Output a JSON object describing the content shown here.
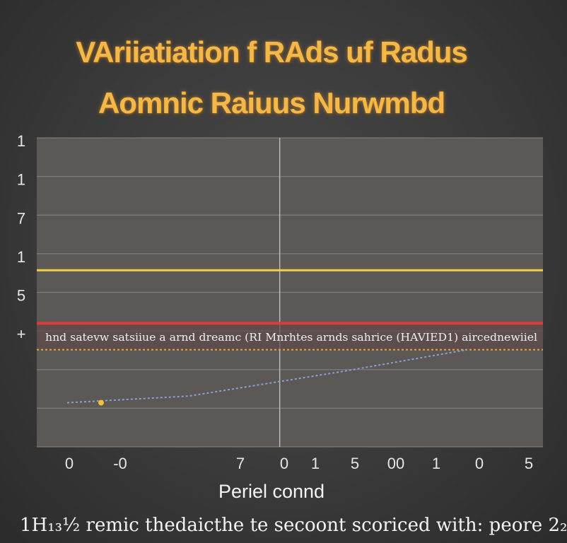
{
  "title_line1": "VAriiatiation f RAds uf Radus",
  "title_line2": "Aomnic Raiuus Nurwmbd",
  "xlabel": "Periel connd",
  "caption": "1H₁₃½ remic thedaicthe te secoont scoriced with: peore 2₂",
  "band_text": "hnd satevw satsiiue a arnd dreamc (RI Mnrhtes arnds sahrice (HAVIED1) aircednewiiel",
  "chart_data": {
    "type": "line",
    "title": "VAriiatiation f RAds uf Radus Aomnic Raiuus Nurwmbd",
    "xlabel": "Periel connd",
    "ylabel": "",
    "y_tick_labels": [
      "1",
      "1",
      "7",
      "1",
      "5",
      "+",
      "",
      ""
    ],
    "x_tick_labels": [
      "0",
      "-0",
      "7",
      "0",
      "1",
      "5",
      "00",
      "1",
      "0",
      "5"
    ],
    "series": [
      {
        "color": "#f1d04a",
        "x": [
          0,
          1
        ],
        "y": [
          4,
          4
        ]
      },
      {
        "color": "#e03a3a",
        "x": [
          0,
          1
        ],
        "y": [
          2.8,
          2.8
        ]
      },
      {
        "color": "#e8a63a",
        "x": [
          0,
          1
        ],
        "y": [
          2.2,
          2.2
        ]
      },
      {
        "color": "#8aa0d8",
        "x": [
          0.06,
          0.3,
          0.6,
          0.85
        ],
        "y": [
          1.0,
          1.15,
          1.7,
          2.2
        ]
      }
    ],
    "xlim": [
      0,
      1
    ],
    "ylim": [
      0,
      7
    ],
    "grid": true,
    "colors": {
      "plot_bg": "#5b5855",
      "grid": "#8a8a8a",
      "title": "#f2b84a"
    }
  }
}
